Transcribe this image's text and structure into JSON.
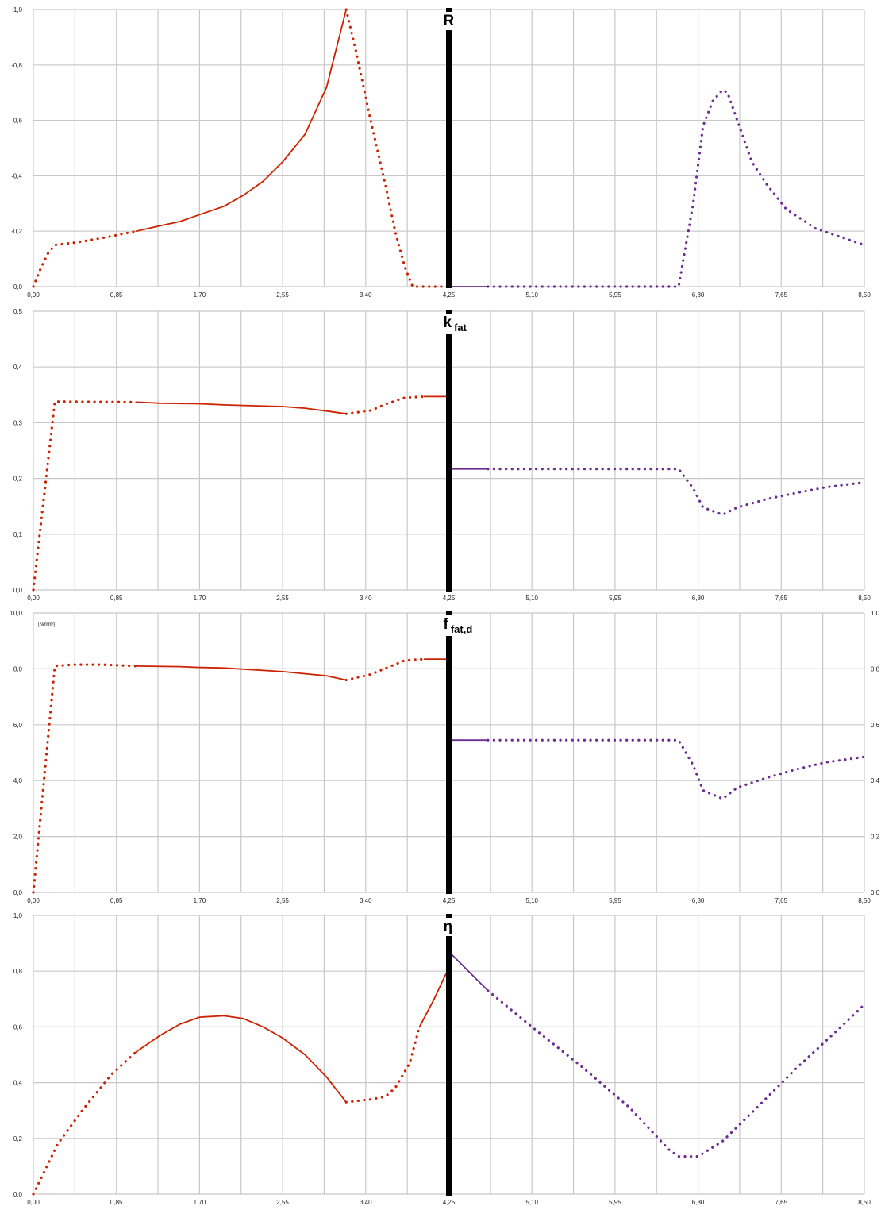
{
  "colors": {
    "left": "#cc2200",
    "right": "#6a2c91",
    "grid": "#c8c8c8",
    "divider": "#000000"
  },
  "chart_data": [
    {
      "type": "line",
      "title_main": "R",
      "title_sub": "",
      "unit": "",
      "xlim": [
        0,
        8.5
      ],
      "ylim": [
        0,
        -1.0
      ],
      "x_ticks": [
        "0,00",
        "0,85",
        "1,70",
        "2,55",
        "3,40",
        "4,25",
        "5,10",
        "5,95",
        "6,80",
        "7,65",
        "8,50"
      ],
      "y_ticks": [
        "0,0",
        "-0,2",
        "-0,4",
        "-0,6",
        "-0,8",
        "-1,0"
      ],
      "y2_ticks": [],
      "divider_x": 4.25,
      "series": [
        {
          "side": "left",
          "style": "dotted",
          "points": [
            [
              0,
              0
            ],
            [
              0.08,
              -0.07
            ],
            [
              0.15,
              -0.12
            ],
            [
              0.22,
              -0.15
            ],
            [
              0.45,
              -0.16
            ],
            [
              0.7,
              -0.175
            ],
            [
              1.05,
              -0.2
            ]
          ]
        },
        {
          "side": "left",
          "style": "solid",
          "points": [
            [
              1.05,
              -0.2
            ],
            [
              1.3,
              -0.22
            ],
            [
              1.5,
              -0.235
            ],
            [
              1.7,
              -0.26
            ],
            [
              1.95,
              -0.29
            ],
            [
              2.15,
              -0.33
            ],
            [
              2.35,
              -0.38
            ],
            [
              2.55,
              -0.45
            ],
            [
              2.78,
              -0.55
            ],
            [
              3.0,
              -0.72
            ],
            [
              3.2,
              -1.0
            ]
          ]
        },
        {
          "side": "left",
          "style": "dotted",
          "points": [
            [
              3.2,
              -1.0
            ],
            [
              3.3,
              -0.85
            ],
            [
              3.45,
              -0.6
            ],
            [
              3.6,
              -0.37
            ],
            [
              3.7,
              -0.2
            ],
            [
              3.8,
              -0.07
            ],
            [
              3.88,
              0
            ],
            [
              4.25,
              0
            ]
          ]
        },
        {
          "side": "right",
          "style": "solid",
          "points": [
            [
              4.25,
              0
            ],
            [
              4.65,
              0
            ]
          ]
        },
        {
          "side": "right",
          "style": "dotted",
          "points": [
            [
              4.65,
              0
            ],
            [
              6.6,
              0
            ],
            [
              6.75,
              -0.3
            ],
            [
              6.85,
              -0.58
            ],
            [
              6.95,
              -0.67
            ],
            [
              7.05,
              -0.71
            ],
            [
              7.1,
              -0.7
            ],
            [
              7.2,
              -0.6
            ],
            [
              7.35,
              -0.45
            ],
            [
              7.5,
              -0.37
            ],
            [
              7.7,
              -0.28
            ],
            [
              8.0,
              -0.21
            ],
            [
              8.5,
              -0.15
            ]
          ]
        }
      ]
    },
    {
      "type": "line",
      "title_main": "k",
      "title_sub": "fat",
      "unit": "",
      "xlim": [
        0,
        8.5
      ],
      "ylim": [
        0,
        0.5
      ],
      "x_ticks": [
        "0,00",
        "0,85",
        "1,70",
        "2,55",
        "3,40",
        "4,25",
        "5,10",
        "5,95",
        "6,80",
        "7,65",
        "8,50"
      ],
      "y_ticks": [
        "0,0",
        "0,1",
        "0,2",
        "0,3",
        "0,4",
        "0,5"
      ],
      "y2_ticks": [],
      "divider_x": 4.25,
      "series": [
        {
          "side": "left",
          "style": "dotted",
          "points": [
            [
              0,
              0
            ],
            [
              0.22,
              0.338
            ],
            [
              1.05,
              0.337
            ]
          ]
        },
        {
          "side": "left",
          "style": "solid",
          "points": [
            [
              1.05,
              0.337
            ],
            [
              1.3,
              0.335
            ],
            [
              1.7,
              0.334
            ],
            [
              1.95,
              0.332
            ],
            [
              2.15,
              0.331
            ],
            [
              2.55,
              0.329
            ],
            [
              2.78,
              0.326
            ],
            [
              3.0,
              0.321
            ],
            [
              3.2,
              0.316
            ]
          ]
        },
        {
          "side": "left",
          "style": "dotted",
          "points": [
            [
              3.2,
              0.316
            ],
            [
              3.45,
              0.322
            ],
            [
              3.6,
              0.333
            ],
            [
              3.8,
              0.345
            ],
            [
              4.0,
              0.347
            ]
          ]
        },
        {
          "side": "left",
          "style": "solid",
          "points": [
            [
              4.0,
              0.347
            ],
            [
              4.25,
              0.347
            ]
          ]
        },
        {
          "side": "right",
          "style": "solid",
          "points": [
            [
              4.25,
              0.217
            ],
            [
              4.65,
              0.217
            ]
          ]
        },
        {
          "side": "right",
          "style": "dotted",
          "points": [
            [
              4.65,
              0.217
            ],
            [
              6.6,
              0.217
            ],
            [
              6.75,
              0.182
            ],
            [
              6.85,
              0.148
            ],
            [
              7.05,
              0.135
            ],
            [
              7.2,
              0.148
            ],
            [
              7.5,
              0.163
            ],
            [
              7.8,
              0.174
            ],
            [
              8.1,
              0.184
            ],
            [
              8.5,
              0.193
            ]
          ]
        }
      ]
    },
    {
      "type": "line",
      "title_main": "f",
      "title_sub": "fat,d",
      "unit": "[N/mm²]",
      "xlim": [
        0,
        8.5
      ],
      "ylim": [
        0,
        10.0
      ],
      "x_ticks": [
        "0,00",
        "0,85",
        "1,70",
        "2,55",
        "3,40",
        "4,25",
        "5,10",
        "5,95",
        "6,80",
        "7,65",
        "8,50"
      ],
      "y_ticks": [
        "0,0",
        "2,0",
        "4,0",
        "6,0",
        "8,0",
        "10,0"
      ],
      "y2_ticks": [
        "0,0",
        "0,2",
        "0,4",
        "0,6",
        "0,8",
        "1,0"
      ],
      "divider_x": 4.25,
      "series": [
        {
          "side": "left",
          "style": "dotted",
          "points": [
            [
              0,
              0
            ],
            [
              0.22,
              8.1
            ],
            [
              0.4,
              8.15
            ],
            [
              0.7,
              8.15
            ],
            [
              1.05,
              8.1
            ]
          ]
        },
        {
          "side": "left",
          "style": "solid",
          "points": [
            [
              1.05,
              8.1
            ],
            [
              1.5,
              8.08
            ],
            [
              1.7,
              8.05
            ],
            [
              1.95,
              8.03
            ],
            [
              2.55,
              7.9
            ],
            [
              3.0,
              7.75
            ],
            [
              3.2,
              7.6
            ]
          ]
        },
        {
          "side": "left",
          "style": "dotted",
          "points": [
            [
              3.2,
              7.6
            ],
            [
              3.45,
              7.8
            ],
            [
              3.8,
              8.3
            ],
            [
              4.0,
              8.35
            ]
          ]
        },
        {
          "side": "left",
          "style": "solid",
          "points": [
            [
              4.0,
              8.35
            ],
            [
              4.25,
              8.35
            ]
          ]
        },
        {
          "side": "right",
          "style": "solid",
          "points": [
            [
              4.25,
              5.45
            ],
            [
              4.65,
              5.45
            ]
          ]
        },
        {
          "side": "right",
          "style": "dotted",
          "points": [
            [
              4.65,
              5.45
            ],
            [
              6.6,
              5.45
            ],
            [
              6.75,
              4.55
            ],
            [
              6.85,
              3.65
            ],
            [
              7.05,
              3.35
            ],
            [
              7.2,
              3.75
            ],
            [
              7.5,
              4.1
            ],
            [
              7.8,
              4.4
            ],
            [
              8.1,
              4.65
            ],
            [
              8.5,
              4.85
            ]
          ]
        }
      ]
    },
    {
      "type": "line",
      "title_main": "η",
      "title_sub": "",
      "unit": "",
      "xlim": [
        0,
        8.5
      ],
      "ylim": [
        0,
        1.0
      ],
      "x_ticks": [
        "0,00",
        "0,85",
        "1,70",
        "2,55",
        "3,40",
        "4,25",
        "5,10",
        "5,95",
        "6,80",
        "7,65",
        "8,50"
      ],
      "y_ticks": [
        "0,0",
        "0,2",
        "0,4",
        "0,6",
        "0,8",
        "1,0"
      ],
      "y2_ticks": [],
      "divider_x": 4.25,
      "series": [
        {
          "side": "left",
          "style": "dotted",
          "points": [
            [
              0,
              0
            ],
            [
              0.25,
              0.18
            ],
            [
              0.5,
              0.3
            ],
            [
              0.8,
              0.43
            ],
            [
              1.05,
              0.51
            ]
          ]
        },
        {
          "side": "left",
          "style": "solid",
          "points": [
            [
              1.05,
              0.51
            ],
            [
              1.3,
              0.57
            ],
            [
              1.5,
              0.61
            ],
            [
              1.7,
              0.635
            ],
            [
              1.95,
              0.64
            ],
            [
              2.15,
              0.63
            ],
            [
              2.35,
              0.6
            ],
            [
              2.55,
              0.56
            ],
            [
              2.78,
              0.5
            ],
            [
              3.0,
              0.42
            ],
            [
              3.2,
              0.33
            ]
          ]
        },
        {
          "side": "left",
          "style": "dotted",
          "points": [
            [
              3.2,
              0.33
            ],
            [
              3.45,
              0.34
            ],
            [
              3.6,
              0.35
            ],
            [
              3.7,
              0.38
            ],
            [
              3.85,
              0.47
            ],
            [
              3.95,
              0.6
            ]
          ]
        },
        {
          "side": "left",
          "style": "solid",
          "points": [
            [
              3.95,
              0.6
            ],
            [
              4.1,
              0.7
            ],
            [
              4.22,
              0.79
            ]
          ]
        },
        {
          "side": "right",
          "style": "solid",
          "points": [
            [
              4.25,
              0.87
            ],
            [
              4.65,
              0.73
            ]
          ]
        },
        {
          "side": "right",
          "style": "dotted",
          "points": [
            [
              4.65,
              0.73
            ],
            [
              5.1,
              0.6
            ],
            [
              5.6,
              0.46
            ],
            [
              6.1,
              0.31
            ],
            [
              6.5,
              0.16
            ],
            [
              6.6,
              0.135
            ],
            [
              6.8,
              0.135
            ],
            [
              7.05,
              0.19
            ],
            [
              7.4,
              0.31
            ],
            [
              7.8,
              0.45
            ],
            [
              8.2,
              0.58
            ],
            [
              8.5,
              0.68
            ]
          ]
        }
      ]
    }
  ]
}
